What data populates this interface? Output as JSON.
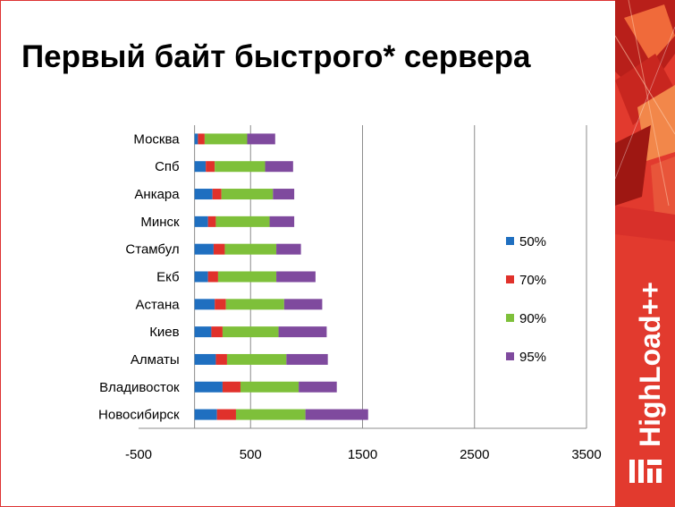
{
  "slide": {
    "title": "Первый байт быстрого* сервера",
    "brand": "HighLoad++"
  },
  "colors": {
    "accent_red": "#cc2a22",
    "s50": "#1f6fc0",
    "s70": "#e0312b",
    "s90": "#7ec03a",
    "s95": "#7f4a9e",
    "grid": "#8c8c8c"
  },
  "chart_data": {
    "type": "bar",
    "orientation": "horizontal",
    "stacked": true,
    "title": "",
    "xlabel": "",
    "ylabel": "",
    "xlim": [
      -500,
      3500
    ],
    "x_ticks": [
      "-500",
      "500",
      "1500",
      "2500",
      "3500"
    ],
    "grid": true,
    "legend_position": "right",
    "categories": [
      "Москва",
      "Спб",
      "Анкара",
      "Минск",
      "Стамбул",
      "Екб",
      "Астана",
      "Киев",
      "Алматы",
      "Владивосток",
      "Новосибирск"
    ],
    "series": [
      {
        "name": "50%",
        "values": [
          30,
          100,
          160,
          120,
          170,
          120,
          180,
          150,
          190,
          250,
          200
        ]
      },
      {
        "name": "70%",
        "values": [
          60,
          80,
          80,
          70,
          100,
          90,
          100,
          100,
          100,
          160,
          170
        ]
      },
      {
        "name": "90%",
        "values": [
          380,
          450,
          460,
          480,
          460,
          520,
          520,
          500,
          530,
          520,
          620
        ]
      },
      {
        "name": "95%",
        "values": [
          250,
          250,
          190,
          220,
          220,
          350,
          340,
          430,
          370,
          340,
          560
        ]
      }
    ]
  }
}
